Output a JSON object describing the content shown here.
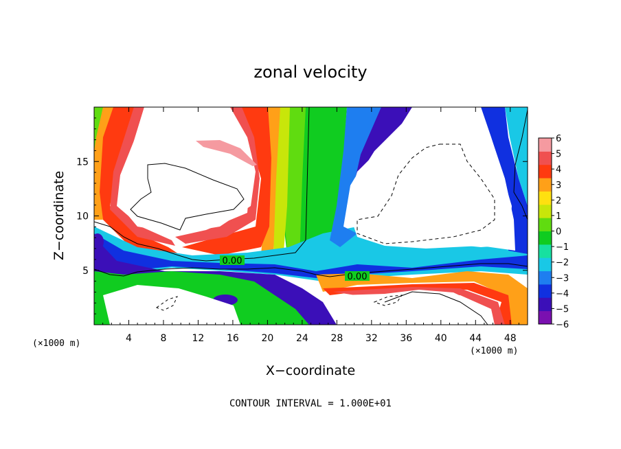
{
  "chart_data": {
    "type": "heatmap",
    "title": "zonal velocity",
    "xlabel": "X−coordinate",
    "ylabel": "Z−coordinate",
    "x_unit_left": "(×1000 m)",
    "x_unit_right": "(×1000 m)",
    "footer": "CONTOUR INTERVAL = 1.000E+01",
    "xlim": [
      0,
      50
    ],
    "ylim": [
      0,
      20
    ],
    "x_ticks": [
      4,
      8,
      12,
      16,
      20,
      24,
      28,
      32,
      36,
      40,
      44,
      48
    ],
    "x_tick_labels": [
      "4",
      "8",
      "12",
      "16",
      "20",
      "24",
      "28",
      "32",
      "36",
      "40",
      "44",
      "48"
    ],
    "y_ticks": [
      5,
      10,
      15
    ],
    "y_tick_labels": [
      "5",
      "10",
      "15"
    ],
    "colorbar": {
      "min": -6,
      "max": 6,
      "ticks": [
        6,
        5,
        4,
        3,
        2,
        1,
        0,
        -1,
        -2,
        -3,
        -4,
        -5,
        -6
      ],
      "tick_labels": [
        "6",
        "5",
        "4",
        "3",
        "2",
        "1",
        "0",
        "−1",
        "−2",
        "−3",
        "−4",
        "−5",
        "−6"
      ],
      "colors": [
        "#7a10b0",
        "#3b0fb8",
        "#1030e0",
        "#1e7ef0",
        "#19c8e6",
        "#17e0a0",
        "#10cc20",
        "#60dc10",
        "#c8e60a",
        "#ffe010",
        "#ffa018",
        "#ff3a10",
        "#f05050",
        "#f59aa0"
      ]
    },
    "contour_labels": [
      {
        "x": 14,
        "z": 6.2,
        "text": "0.00"
      },
      {
        "x": 30,
        "z": 4.2,
        "text": "0.00"
      }
    ]
  }
}
